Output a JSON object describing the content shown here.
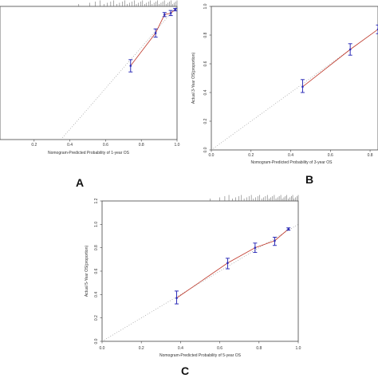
{
  "chart_data": [
    {
      "type": "scatter",
      "panel_label": "A",
      "xlabel": "Nomogram-Predicted Probability of 1-year OS",
      "ylabel": "",
      "xlim": [
        0.0,
        1.0
      ],
      "ylim": [
        0.35,
        1.0
      ],
      "x_ticks": [
        "0.2",
        "0.4",
        "0.6",
        "0.8",
        "1.0"
      ],
      "y_ticks": [],
      "points": [
        {
          "x": 0.74,
          "y": 0.71,
          "lo": 0.68,
          "hi": 0.74
        },
        {
          "x": 0.88,
          "y": 0.87,
          "lo": 0.85,
          "hi": 0.89
        },
        {
          "x": 0.93,
          "y": 0.96,
          "lo": 0.95,
          "hi": 0.97
        },
        {
          "x": 0.965,
          "y": 0.967,
          "lo": 0.955,
          "hi": 0.98
        },
        {
          "x": 0.99,
          "y": 0.985,
          "lo": 0.978,
          "hi": 0.99
        }
      ],
      "colors": {
        "points": "#2e2eb8",
        "line": "#c0392b",
        "reference": "#9a9a9a"
      }
    },
    {
      "type": "scatter",
      "panel_label": "B",
      "xlabel": "Nomogram-Predicted Probability of 3-year OS",
      "ylabel": "Actual 3-Year OS(proportion)",
      "xlim": [
        0.0,
        0.84
      ],
      "ylim": [
        0.0,
        1.0
      ],
      "x_ticks": [
        "0.0",
        "0.2",
        "0.4",
        "0.6",
        "0.8"
      ],
      "y_ticks": [
        "0.0",
        "0.2",
        "0.4",
        "0.6",
        "0.8",
        "1.0"
      ],
      "points": [
        {
          "x": 0.46,
          "y": 0.44,
          "lo": 0.4,
          "hi": 0.49
        },
        {
          "x": 0.7,
          "y": 0.7,
          "lo": 0.66,
          "hi": 0.74
        },
        {
          "x": 0.84,
          "y": 0.84,
          "lo": 0.81,
          "hi": 0.87
        }
      ],
      "colors": {
        "points": "#2e2eb8",
        "line": "#c0392b",
        "reference": "#9a9a9a"
      }
    },
    {
      "type": "scatter",
      "panel_label": "C",
      "xlabel": "Nomogram-Predicted Probability of 5-year OS",
      "ylabel": "Actual 5-Year OS(proportion)",
      "xlim": [
        0.0,
        1.0
      ],
      "ylim": [
        0.0,
        1.2
      ],
      "x_ticks": [
        "0.0",
        "0.2",
        "0.4",
        "0.6",
        "0.8",
        "1.0"
      ],
      "y_ticks": [
        "0.0",
        "0.2",
        "0.4",
        "0.6",
        "0.8",
        "1.0",
        "1.2"
      ],
      "points": [
        {
          "x": 0.38,
          "y": 0.37,
          "lo": 0.32,
          "hi": 0.43
        },
        {
          "x": 0.64,
          "y": 0.67,
          "lo": 0.62,
          "hi": 0.71
        },
        {
          "x": 0.78,
          "y": 0.8,
          "lo": 0.76,
          "hi": 0.84
        },
        {
          "x": 0.88,
          "y": 0.86,
          "lo": 0.82,
          "hi": 0.89
        },
        {
          "x": 0.95,
          "y": 0.96,
          "lo": 0.95,
          "hi": 0.97
        }
      ],
      "colors": {
        "points": "#2e2eb8",
        "line": "#c0392b",
        "reference": "#9a9a9a"
      }
    }
  ]
}
